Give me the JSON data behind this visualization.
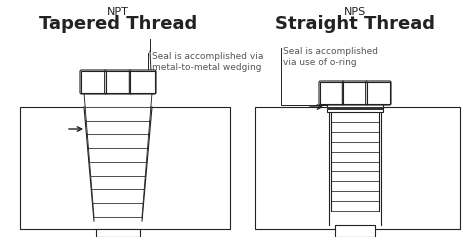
{
  "background_color": "#ffffff",
  "line_color": "#222222",
  "title_npt": "NPT",
  "title_nps": "NPS",
  "subtitle_npt": "Tapered Thread",
  "subtitle_nps": "Straight Thread",
  "label_npt": "Seal is accomplished via\nmetal-to-metal wedging",
  "label_nps": "Seal is accomplished\nvia use of o-ring",
  "title_fontsize": 8,
  "subtitle_fontsize": 13,
  "label_fontsize": 6.5
}
